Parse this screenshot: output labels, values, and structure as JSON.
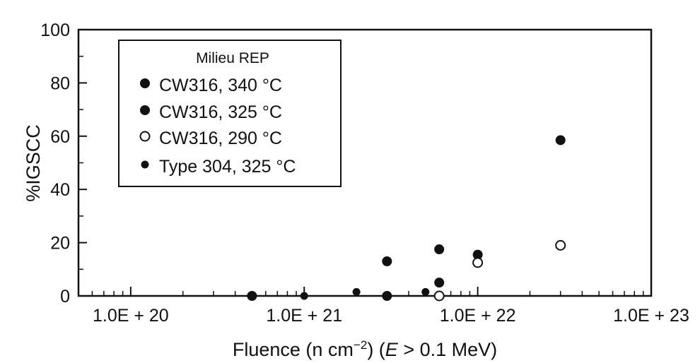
{
  "chart_data": {
    "type": "scatter",
    "title": "",
    "xlabel_parts": {
      "before": "Fluence (n cm",
      "exponent": "−2",
      "middle": ") (",
      "italic": "E",
      "after": " > 0.1 MeV)"
    },
    "ylabel": "%IGSCC",
    "x_scale": "log",
    "xlim": [
      5e+19,
      1e+23
    ],
    "ylim": [
      0,
      100
    ],
    "x_ticks": [
      1e+20,
      1e+21,
      1e+22,
      1e+23
    ],
    "x_tick_labels": [
      "1.0E + 20",
      "1.0E + 21",
      "1.0E + 22",
      "1.0E + 23"
    ],
    "y_ticks": [
      0,
      20,
      40,
      60,
      80,
      100
    ],
    "y_tick_labels": [
      "0",
      "20",
      "40",
      "60",
      "80",
      "100"
    ],
    "grid": false,
    "legend": {
      "title": "Milieu REP",
      "placement": "top-left"
    },
    "series": [
      {
        "name": "CW316, 340 °C",
        "marker": "filled-circle-large",
        "points": [
          {
            "x": 5e+20,
            "y": 0
          },
          {
            "x": 3e+21,
            "y": 13
          },
          {
            "x": 6e+21,
            "y": 17.5
          },
          {
            "x": 1e+22,
            "y": 15.5
          }
        ]
      },
      {
        "name": "CW316, 325 °C",
        "marker": "filled-circle-large",
        "points": [
          {
            "x": 3e+21,
            "y": 0
          },
          {
            "x": 6e+21,
            "y": 5
          },
          {
            "x": 3e+22,
            "y": 58.5
          }
        ]
      },
      {
        "name": "CW316, 290 °C",
        "marker": "open-circle",
        "points": [
          {
            "x": 6e+21,
            "y": 0
          },
          {
            "x": 1e+22,
            "y": 12.5
          },
          {
            "x": 3e+22,
            "y": 19
          }
        ]
      },
      {
        "name": "Type 304, 325 °C",
        "marker": "filled-circle-small",
        "points": [
          {
            "x": 1e+21,
            "y": 0
          },
          {
            "x": 2e+21,
            "y": 1.5
          },
          {
            "x": 5e+21,
            "y": 1.5
          }
        ]
      }
    ]
  }
}
